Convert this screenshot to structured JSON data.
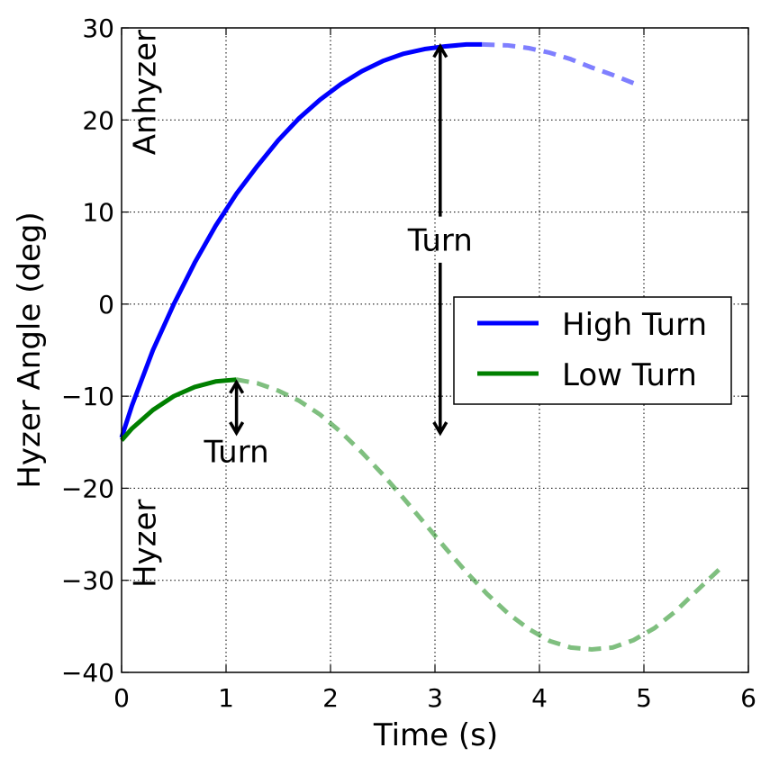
{
  "chart_data": {
    "type": "line",
    "xlabel": "Time (s)",
    "ylabel": "Hyzer Angle (deg)",
    "xlim": [
      0,
      6
    ],
    "ylim": [
      -40,
      30
    ],
    "xticks": [
      0,
      1,
      2,
      3,
      4,
      5,
      6
    ],
    "yticks": [
      -40,
      -30,
      -20,
      -10,
      0,
      10,
      20,
      30
    ],
    "xtick_labels": [
      "0",
      "1",
      "2",
      "3",
      "4",
      "5",
      "6"
    ],
    "ytick_labels": [
      "−40",
      "−30",
      "−20",
      "−10",
      "0",
      "10",
      "20",
      "30"
    ],
    "grid": true,
    "legend_position": "center-right",
    "series": [
      {
        "name": "High Turn",
        "color": "#0000ff",
        "solid": {
          "x": [
            0,
            0.1,
            0.3,
            0.5,
            0.7,
            0.9,
            1.1,
            1.3,
            1.5,
            1.7,
            1.9,
            2.1,
            2.3,
            2.5,
            2.7,
            2.9,
            3.1,
            3.3,
            3.45
          ],
          "y": [
            -14.5,
            -11,
            -5,
            0,
            4.5,
            8.5,
            12,
            15,
            17.8,
            20.2,
            22.2,
            23.9,
            25.3,
            26.4,
            27.2,
            27.7,
            28,
            28.2,
            28.2
          ]
        },
        "dashed": {
          "x": [
            3.45,
            3.7,
            3.9,
            4.1,
            4.3,
            4.5,
            4.7,
            4.9
          ],
          "y": [
            28.2,
            28.1,
            27.8,
            27.3,
            26.6,
            25.7,
            24.9,
            24
          ]
        }
      },
      {
        "name": "Low Turn",
        "color": "#008000",
        "solid": {
          "x": [
            0,
            0.1,
            0.3,
            0.5,
            0.7,
            0.9,
            1.1
          ],
          "y": [
            -14.8,
            -13.5,
            -11.5,
            -10,
            -9,
            -8.4,
            -8.2
          ]
        },
        "dashed": {
          "x": [
            1.1,
            1.3,
            1.5,
            1.7,
            1.9,
            2.1,
            2.3,
            2.5,
            2.7,
            2.9,
            3.1,
            3.3,
            3.5,
            3.7,
            3.9,
            4.1,
            4.3,
            4.5,
            4.7,
            4.9,
            5.1,
            5.3,
            5.5,
            5.75
          ],
          "y": [
            -8.2,
            -8.6,
            -9.4,
            -10.5,
            -12,
            -13.9,
            -16.1,
            -18.5,
            -21.1,
            -23.8,
            -26.5,
            -29.1,
            -31.5,
            -33.6,
            -35.3,
            -36.6,
            -37.3,
            -37.5,
            -37.3,
            -36.5,
            -35.2,
            -33.4,
            -31.2,
            -28.5
          ]
        }
      }
    ],
    "annotations": {
      "anhyzer": {
        "text": "Anhyzer",
        "x": 0.22,
        "y": 23
      },
      "hyzer": {
        "text": "Hyzer",
        "x": 0.22,
        "y": -26
      },
      "turn_high": {
        "text": "Turn",
        "x": 3.05,
        "y": 7,
        "arrow_x": 3.05,
        "arrow_top": 28,
        "arrow_bottom": -14,
        "gap_top": 9.5,
        "gap_bottom": 4.5
      },
      "turn_low": {
        "text": "Turn",
        "x": 1.1,
        "y": -16,
        "arrow_x": 1.1,
        "arrow_top": -8.5,
        "arrow_bottom": -14
      }
    }
  }
}
